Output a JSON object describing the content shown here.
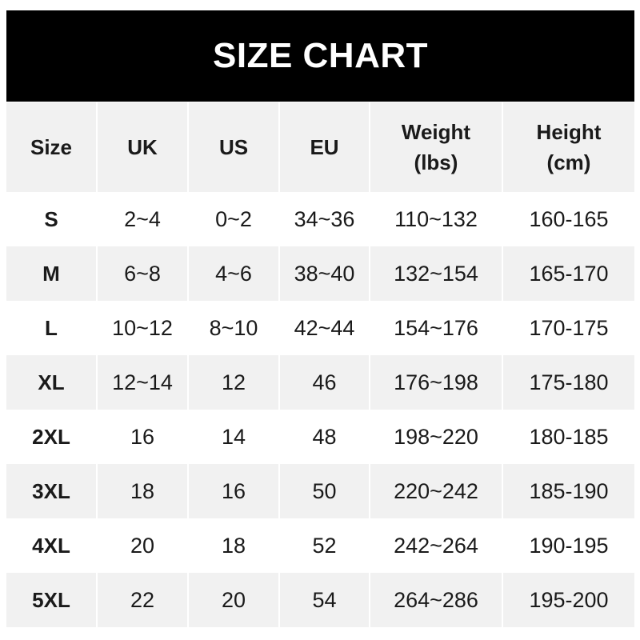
{
  "title": "SIZE CHART",
  "chart_data": {
    "type": "table",
    "title": "SIZE CHART",
    "columns": [
      "Size",
      "UK",
      "US",
      "EU",
      "Weight (lbs)",
      "Height (cm)"
    ],
    "header": [
      {
        "line1": "Size",
        "line2": ""
      },
      {
        "line1": "UK",
        "line2": ""
      },
      {
        "line1": "US",
        "line2": ""
      },
      {
        "line1": "EU",
        "line2": ""
      },
      {
        "line1": "Weight",
        "line2": "(lbs)"
      },
      {
        "line1": "Height",
        "line2": "(cm)"
      }
    ],
    "rows": [
      [
        "S",
        "2~4",
        "0~2",
        "34~36",
        "110~132",
        "160-165"
      ],
      [
        "M",
        "6~8",
        "4~6",
        "38~40",
        "132~154",
        "165-170"
      ],
      [
        "L",
        "10~12",
        "8~10",
        "42~44",
        "154~176",
        "170-175"
      ],
      [
        "XL",
        "12~14",
        "12",
        "46",
        "176~198",
        "175-180"
      ],
      [
        "2XL",
        "16",
        "14",
        "48",
        "198~220",
        "180-185"
      ],
      [
        "3XL",
        "18",
        "16",
        "50",
        "220~242",
        "185-190"
      ],
      [
        "4XL",
        "20",
        "18",
        "52",
        "242~264",
        "190-195"
      ],
      [
        "5XL",
        "22",
        "20",
        "54",
        "264~286",
        "195-200"
      ]
    ]
  },
  "colors": {
    "title_bg": "#000000",
    "title_text": "#ffffff",
    "stripe": "#f1f1f1",
    "text": "#1a1a1a"
  }
}
